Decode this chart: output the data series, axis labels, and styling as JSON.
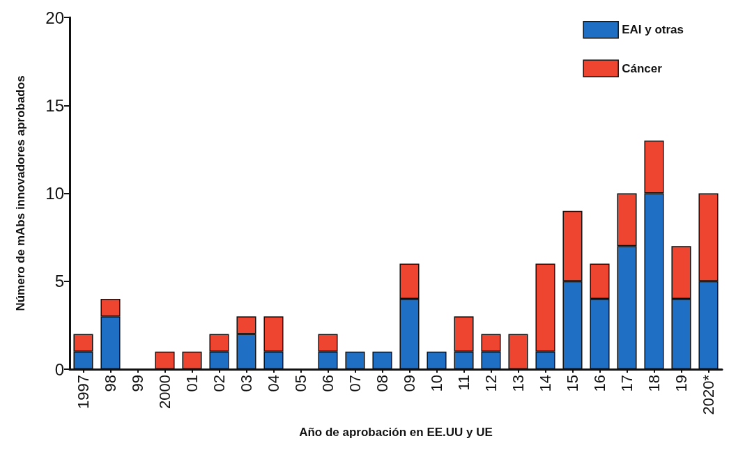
{
  "chart_data": {
    "type": "bar",
    "stacked": true,
    "xlabel": "Año de aprobación en EE.UU y UE",
    "ylabel": "Número de mAbs innovadores aprobados",
    "categories": [
      "1997",
      "98",
      "99",
      "2000",
      "01",
      "02",
      "03",
      "04",
      "05",
      "06",
      "07",
      "08",
      "09",
      "10",
      "11",
      "12",
      "13",
      "14",
      "15",
      "16",
      "17",
      "18",
      "19",
      "2020*"
    ],
    "series": [
      {
        "name": "EAI y otras",
        "color": "#1f6fc5",
        "values": [
          1,
          3,
          0,
          0,
          0,
          1,
          2,
          1,
          0,
          1,
          1,
          1,
          4,
          1,
          1,
          1,
          0,
          1,
          5,
          4,
          7,
          10,
          4,
          5
        ]
      },
      {
        "name": "Cáncer",
        "color": "#ee4530",
        "values": [
          1,
          1,
          0,
          1,
          1,
          1,
          1,
          2,
          0,
          1,
          0,
          0,
          2,
          0,
          2,
          1,
          2,
          5,
          4,
          2,
          3,
          3,
          3,
          5
        ]
      }
    ],
    "ylim": [
      0,
      20
    ],
    "yticks": [
      0,
      5,
      10,
      15,
      20
    ],
    "grid": false,
    "legend": "top right"
  }
}
